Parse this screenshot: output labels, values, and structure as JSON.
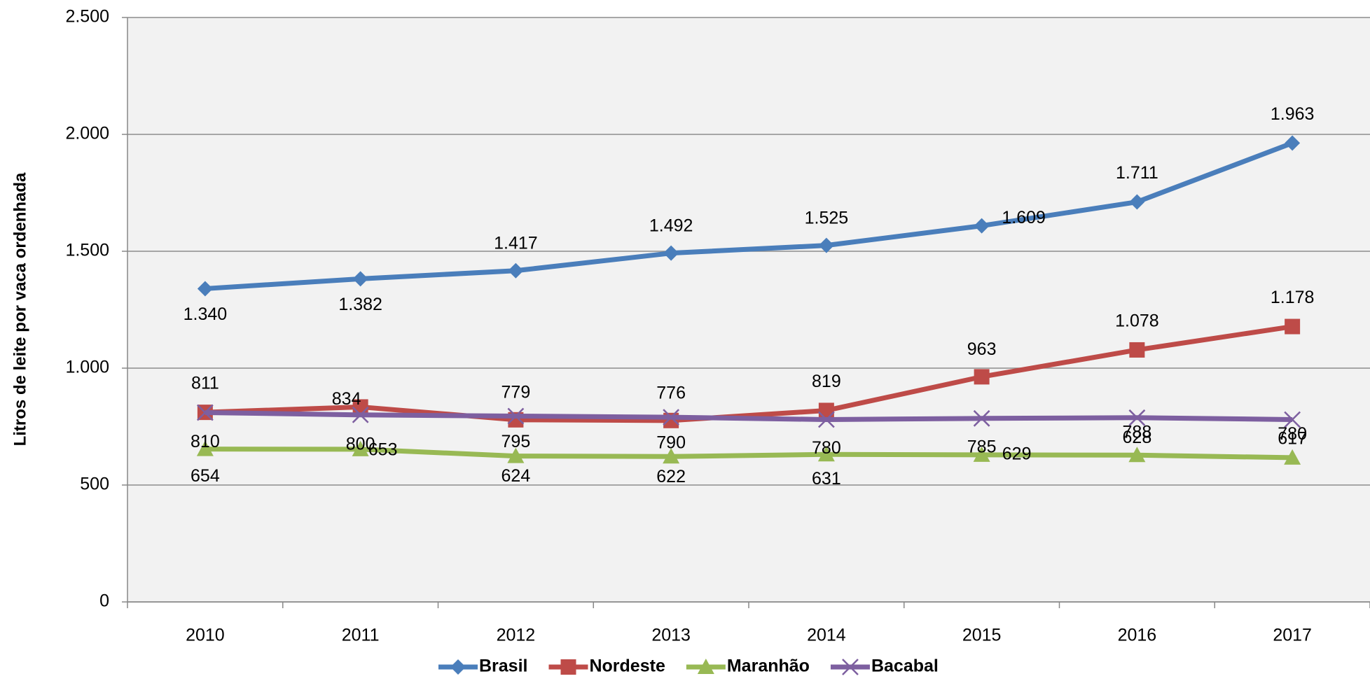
{
  "chart_data": {
    "type": "line",
    "y_label": "Litros de leite por vaca ordenhada",
    "categories": [
      "2010",
      "2011",
      "2012",
      "2013",
      "2014",
      "2015",
      "2016",
      "2017"
    ],
    "series": [
      {
        "name": "Brasil",
        "color": "#4a7ebb",
        "marker": "diamond",
        "values": [
          1340,
          1382,
          1417,
          1492,
          1525,
          1609,
          1711,
          1963
        ],
        "value_labels": [
          "1.340",
          "1.382",
          "1.417",
          "1.492",
          "1.525",
          "1.609",
          "1.711",
          "1.963"
        ]
      },
      {
        "name": "Nordeste",
        "color": "#be4b48",
        "marker": "square",
        "values": [
          811,
          834,
          779,
          776,
          819,
          963,
          1078,
          1178
        ],
        "value_labels": [
          "811",
          "834",
          "779",
          "776",
          "819",
          "963",
          "1.078",
          "1.178"
        ]
      },
      {
        "name": "Maranhão",
        "color": "#98b954",
        "marker": "triangle",
        "values": [
          654,
          653,
          624,
          622,
          631,
          629,
          628,
          617
        ]
      },
      {
        "name": "Bacabal",
        "color": "#7d5fa0",
        "marker": "x",
        "values": [
          810,
          800,
          795,
          790,
          780,
          785,
          788,
          780
        ]
      }
    ],
    "ylim": [
      0,
      2500
    ],
    "yticks": [
      0,
      500,
      {
        "value": 1000,
        "label": "1.000"
      },
      {
        "value": 1500,
        "label": "1.500"
      },
      {
        "value": 2000,
        "label": "2.000"
      },
      {
        "value": 2500,
        "label": "2.500"
      }
    ],
    "grid": true,
    "legend": "bottom"
  }
}
